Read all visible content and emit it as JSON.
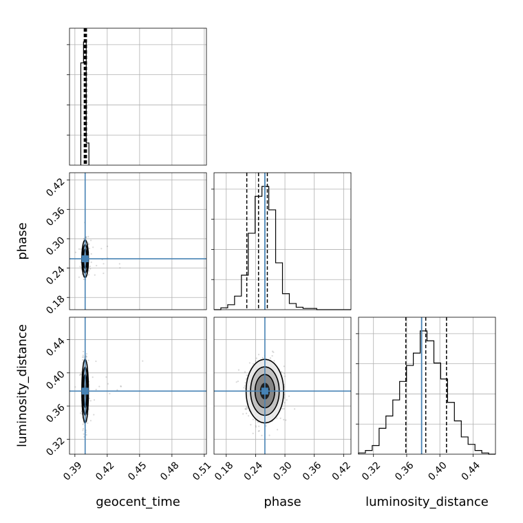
{
  "chart_data": {
    "type": "corner",
    "parameters": [
      "geocent_time",
      "phase",
      "luminosity_distance"
    ],
    "truths": {
      "geocent_time": 0.3995,
      "phase": 0.259,
      "luminosity_distance": 0.378
    },
    "axis_ranges": {
      "geocent_time": [
        0.385,
        0.512
      ],
      "phase": [
        0.155,
        0.435
      ],
      "luminosity_distance": [
        0.302,
        0.467
      ]
    },
    "ticks": {
      "geocent_time": [
        0.39,
        0.42,
        0.45,
        0.48,
        0.51
      ],
      "phase": [
        0.18,
        0.24,
        0.3,
        0.36,
        0.42
      ],
      "luminosity_distance": [
        0.32,
        0.36,
        0.4,
        0.44
      ]
    },
    "tick_labels": {
      "geocent_time": [
        "0.39",
        "0.42",
        "0.45",
        "0.48",
        "0.51"
      ],
      "phase": [
        "0.18",
        "0.24",
        "0.30",
        "0.36",
        "0.42"
      ],
      "luminosity_distance": [
        "0.32",
        "0.36",
        "0.40",
        "0.44"
      ]
    },
    "quantiles": {
      "geocent_time": [
        0.3993,
        0.3997,
        0.4001
      ],
      "phase": [
        0.222,
        0.246,
        0.264
      ],
      "luminosity_distance": [
        0.359,
        0.383,
        0.408
      ]
    },
    "histograms": {
      "geocent_time": {
        "edges": [
          0.3955,
          0.398,
          0.4005,
          0.403
        ],
        "counts": [
          0.83,
          1.0,
          0.18
        ]
      },
      "phase": {
        "edges": [
          0.155,
          0.169,
          0.183,
          0.197,
          0.211,
          0.225,
          0.239,
          0.253,
          0.267,
          0.281,
          0.295,
          0.309,
          0.323,
          0.337,
          0.351,
          0.365,
          0.379,
          0.393,
          0.407,
          0.421,
          0.435
        ],
        "counts": [
          0.0,
          0.015,
          0.04,
          0.11,
          0.28,
          0.62,
          0.92,
          1.0,
          0.81,
          0.38,
          0.13,
          0.05,
          0.02,
          0.01,
          0.01,
          0.0,
          0.0,
          0.0,
          0.0,
          0.0
        ]
      },
      "luminosity_distance": {
        "edges": [
          0.302,
          0.3103,
          0.3185,
          0.3268,
          0.335,
          0.3433,
          0.3515,
          0.3598,
          0.368,
          0.3763,
          0.3845,
          0.3928,
          0.401,
          0.4093,
          0.4175,
          0.4258,
          0.434,
          0.4423,
          0.4505,
          0.4588,
          0.467
        ],
        "counts": [
          0.01,
          0.03,
          0.07,
          0.21,
          0.31,
          0.44,
          0.59,
          0.72,
          0.82,
          1.0,
          0.92,
          0.74,
          0.61,
          0.42,
          0.27,
          0.14,
          0.08,
          0.03,
          0.01,
          0.0
        ]
      }
    },
    "grid": true,
    "colors": {
      "truth": "#4682b4",
      "hist": "#000000",
      "quantile": "#000000",
      "scatter": "#7f7f7f",
      "grid": "#b0b0b0"
    }
  }
}
